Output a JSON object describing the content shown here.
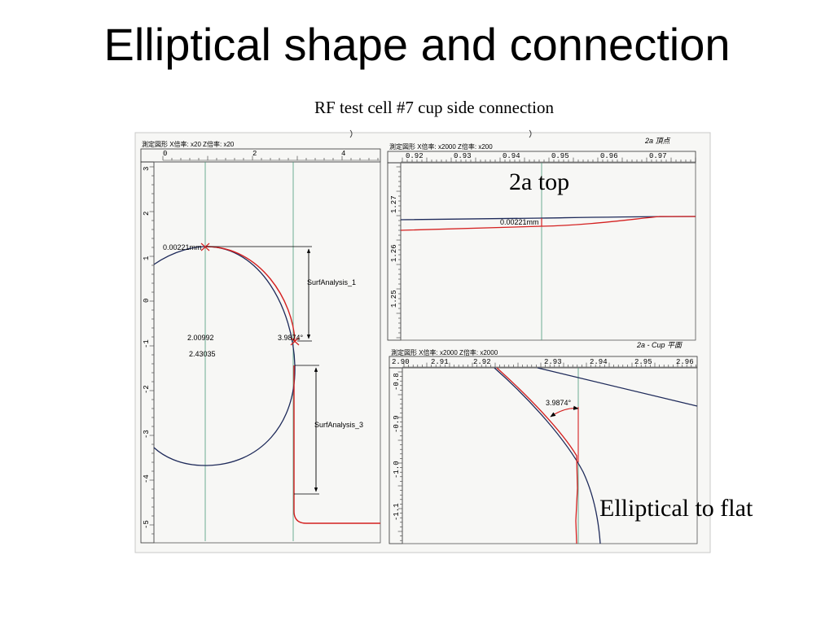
{
  "slide": {
    "title": "Elliptical shape and connection",
    "subtitle": "RF test cell #7 cup side  connection",
    "callout_top": "2a top",
    "callout_bottom": "Elliptical to flat"
  },
  "left_panel": {
    "header": "測定図形  X倍率: x20  Z倍率: x20",
    "x_ticks": [
      "0",
      "2",
      "4"
    ],
    "y_ticks": [
      "3",
      "2",
      "1",
      "0",
      "-1",
      "-2",
      "-3",
      "-4",
      "-5"
    ],
    "label_top": "0.00221mm",
    "label_surf1": "SurfAnalysis_1",
    "label_surf3": "SurfAnalysis_3",
    "label_a": "2.00992",
    "label_b": "2.43035",
    "label_angle": "3.9874°"
  },
  "top_right_panel": {
    "header": "測定図形  X倍率: x2000  Z倍率: x200",
    "note": "2a 頂点",
    "x_ticks": [
      "0.92",
      "0.93",
      "0.94",
      "0.95",
      "0.96",
      "0.97"
    ],
    "y_ticks": [
      "1.27",
      "1.26",
      "1.25"
    ],
    "label": "0.00221mm"
  },
  "bottom_right_panel": {
    "header": "測定図形  X倍率: x2000  Z倍率: x2000",
    "note": "2a - Cup 平面",
    "x_ticks": [
      "2.90",
      "2.91",
      "2.92",
      "2.93",
      "2.94",
      "2.95",
      "2.96"
    ],
    "y_ticks": [
      "-0.8",
      "-0.9",
      "-1.0",
      "-1.1"
    ],
    "label": "3.9874°"
  },
  "colors": {
    "profile": "#1e2a5a",
    "fit": "#d42020",
    "guide": "#4a9a7a"
  }
}
